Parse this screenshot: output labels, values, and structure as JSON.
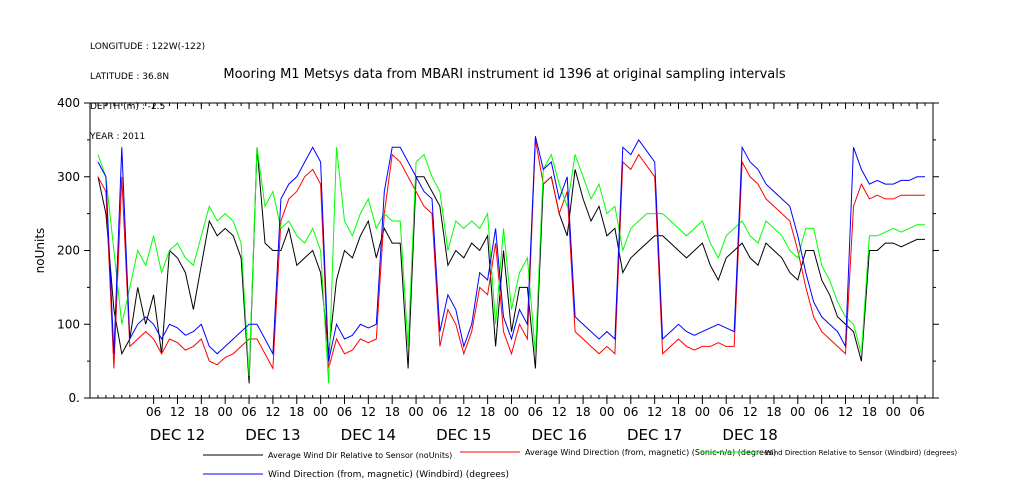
{
  "header": {
    "meta_lines": [
      "LONGITUDE : 122W(-122)",
      "LATITUDE : 36.8N",
      "DEPTH (m) : -2.5",
      "YEAR : 2011"
    ],
    "title": "Mooring M1 Metsys data from MBARI instrument id 1396 at original sampling intervals"
  },
  "chart_data": {
    "type": "line",
    "title": "Mooring M1 Metsys data from MBARI instrument id 1396 at original sampling intervals",
    "xlabel": "",
    "ylabel": "noUnits",
    "ylim": [
      0,
      400
    ],
    "xlim": [
      -10,
      202
    ],
    "x_units": "hours since DEC 12 00:00, 2011",
    "yticks": [
      0,
      100,
      200,
      300,
      400
    ],
    "ytick_labels": [
      "0.",
      "100",
      "200",
      "300",
      "400"
    ],
    "hour_ticks": [
      6,
      12,
      18,
      24,
      30,
      36,
      42,
      48,
      54,
      60,
      66,
      72,
      78,
      84,
      90,
      96,
      102,
      108,
      114,
      120,
      126,
      132,
      138,
      144,
      150,
      156,
      162,
      168,
      174,
      180,
      186,
      192,
      198
    ],
    "hour_tick_labels": [
      "06",
      "12",
      "18",
      "00",
      "06",
      "12",
      "18",
      "00",
      "06",
      "12",
      "18",
      "00",
      "06",
      "12",
      "18",
      "00",
      "06",
      "12",
      "18",
      "00",
      "06",
      "12",
      "18",
      "00",
      "06",
      "12",
      "18",
      "00",
      "06",
      "12",
      "18",
      "00",
      "06"
    ],
    "day_labels": [
      "DEC 12",
      "DEC 13",
      "DEC 14",
      "DEC 15",
      "DEC 16",
      "DEC 17",
      "DEC 18"
    ],
    "day_label_hours": [
      12,
      36,
      60,
      84,
      108,
      132,
      156
    ],
    "grid": false,
    "legend_placement": "bottom",
    "x": [
      -8,
      -6,
      -4,
      -2,
      0,
      2,
      4,
      6,
      8,
      10,
      12,
      14,
      16,
      18,
      20,
      22,
      24,
      26,
      28,
      30,
      32,
      34,
      36,
      38,
      40,
      42,
      44,
      46,
      48,
      50,
      52,
      54,
      56,
      58,
      60,
      62,
      64,
      66,
      68,
      70,
      72,
      74,
      76,
      78,
      80,
      82,
      84,
      86,
      88,
      90,
      92,
      94,
      96,
      98,
      100,
      102,
      104,
      106,
      108,
      110,
      112,
      114,
      116,
      118,
      120,
      122,
      124,
      126,
      128,
      130,
      132,
      134,
      136,
      138,
      140,
      142,
      144,
      146,
      148,
      150,
      152,
      154,
      156,
      158,
      160,
      162,
      164,
      166,
      168,
      170,
      172,
      174,
      176,
      178,
      180,
      182,
      184,
      186,
      188,
      190,
      192,
      194,
      196,
      198,
      200
    ],
    "series": [
      {
        "name": "Average Wind Dir Relative to Sensor (noUnits)",
        "color": "#000000",
        "values": [
          300,
          250,
          120,
          60,
          80,
          150,
          100,
          140,
          60,
          200,
          190,
          170,
          120,
          180,
          240,
          220,
          230,
          220,
          190,
          20,
          340,
          210,
          200,
          200,
          230,
          180,
          190,
          200,
          170,
          60,
          160,
          200,
          190,
          220,
          240,
          190,
          230,
          210,
          210,
          40,
          300,
          300,
          280,
          260,
          180,
          200,
          190,
          210,
          200,
          220,
          70,
          200,
          90,
          150,
          150,
          40,
          290,
          300,
          250,
          220,
          310,
          270,
          240,
          260,
          220,
          230,
          170,
          190,
          200,
          210,
          220,
          220,
          210,
          200,
          190,
          200,
          210,
          180,
          160,
          190,
          200,
          210,
          190,
          180,
          210,
          200,
          190,
          170,
          160,
          200,
          200,
          160,
          140,
          110,
          100,
          90,
          50,
          200,
          200,
          210,
          210,
          205,
          210,
          215,
          215
        ]
      },
      {
        "name": "Average Wind Direction (from, magnetic) (Sonic-n/a) (degrees)",
        "color": "#ff0000",
        "values": [
          300,
          280,
          40,
          300,
          70,
          80,
          90,
          80,
          60,
          80,
          75,
          65,
          70,
          80,
          50,
          45,
          55,
          60,
          70,
          80,
          80,
          60,
          40,
          240,
          270,
          280,
          300,
          310,
          290,
          40,
          80,
          60,
          65,
          80,
          75,
          80,
          250,
          330,
          320,
          300,
          280,
          260,
          250,
          70,
          120,
          100,
          60,
          90,
          150,
          140,
          210,
          90,
          60,
          100,
          80,
          350,
          290,
          300,
          250,
          280,
          90,
          80,
          70,
          60,
          70,
          60,
          320,
          310,
          330,
          315,
          300,
          60,
          70,
          80,
          70,
          65,
          70,
          70,
          75,
          70,
          70,
          320,
          300,
          290,
          270,
          260,
          250,
          240,
          200,
          150,
          110,
          90,
          80,
          70,
          60,
          260,
          290,
          270,
          275,
          270,
          270,
          275,
          275,
          275,
          275
        ]
      },
      {
        "name": "Wind Direction Relative to Sensor (Windbird) (degrees)",
        "color": "#00ff00",
        "values": [
          330,
          300,
          200,
          100,
          150,
          200,
          180,
          220,
          170,
          200,
          210,
          190,
          180,
          220,
          260,
          240,
          250,
          240,
          210,
          30,
          340,
          260,
          280,
          230,
          240,
          220,
          210,
          230,
          200,
          20,
          340,
          240,
          220,
          250,
          270,
          230,
          250,
          240,
          240,
          70,
          320,
          330,
          300,
          280,
          200,
          240,
          230,
          240,
          230,
          250,
          100,
          230,
          120,
          170,
          190,
          60,
          310,
          330,
          290,
          260,
          330,
          300,
          270,
          290,
          250,
          260,
          200,
          230,
          240,
          250,
          250,
          250,
          240,
          230,
          220,
          230,
          240,
          210,
          190,
          220,
          230,
          240,
          220,
          210,
          240,
          230,
          220,
          200,
          190,
          230,
          230,
          180,
          160,
          130,
          110,
          100,
          60,
          220,
          220,
          225,
          230,
          225,
          230,
          235,
          235
        ]
      },
      {
        "name": "Wind Direction (from, magnetic) (Windbird) (degrees)",
        "color": "#0000ff",
        "values": [
          320,
          300,
          60,
          340,
          80,
          100,
          110,
          100,
          80,
          100,
          95,
          85,
          90,
          100,
          70,
          60,
          70,
          80,
          90,
          100,
          100,
          80,
          60,
          270,
          290,
          300,
          320,
          340,
          320,
          50,
          100,
          80,
          85,
          100,
          95,
          100,
          280,
          340,
          340,
          320,
          300,
          280,
          270,
          90,
          140,
          120,
          70,
          100,
          170,
          160,
          230,
          110,
          80,
          120,
          100,
          355,
          310,
          320,
          270,
          300,
          110,
          100,
          90,
          80,
          90,
          80,
          340,
          330,
          350,
          335,
          320,
          80,
          90,
          100,
          90,
          85,
          90,
          95,
          100,
          95,
          90,
          340,
          320,
          310,
          290,
          280,
          270,
          260,
          220,
          170,
          130,
          110,
          100,
          90,
          70,
          340,
          310,
          290,
          295,
          290,
          290,
          295,
          295,
          300,
          300
        ]
      }
    ]
  }
}
